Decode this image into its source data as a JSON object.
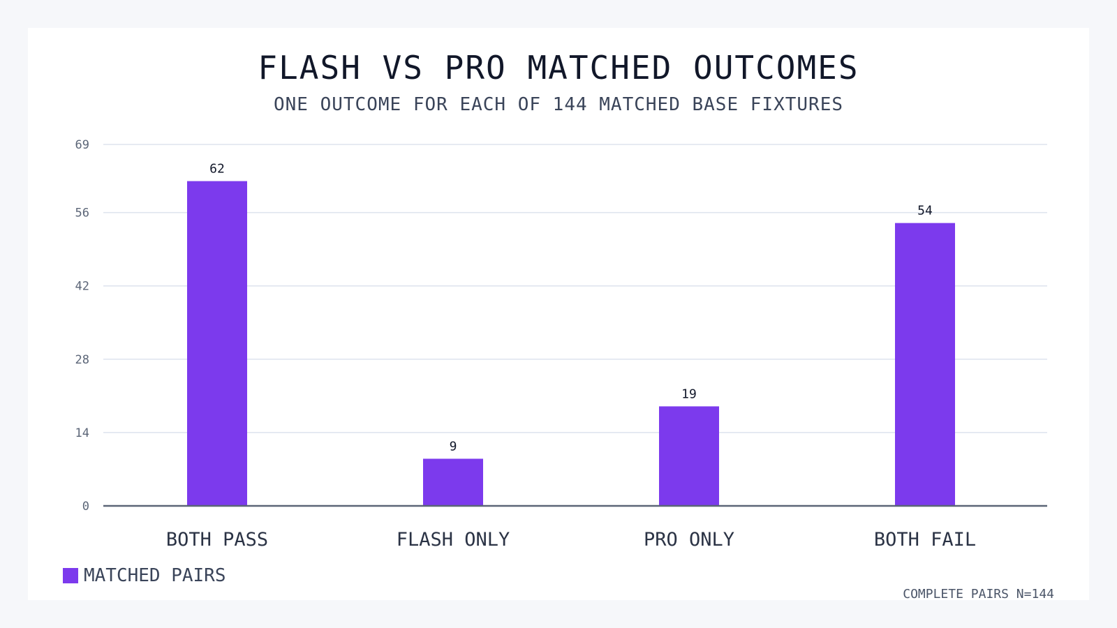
{
  "chart_data": {
    "type": "bar",
    "title": "FLASH VS PRO MATCHED OUTCOMES",
    "subtitle": "ONE OUTCOME FOR EACH OF 144 MATCHED BASE FIXTURES",
    "categories": [
      "BOTH PASS",
      "FLASH ONLY",
      "PRO ONLY",
      "BOTH FAIL"
    ],
    "series": [
      {
        "name": "MATCHED PAIRS",
        "values": [
          62,
          9,
          19,
          54
        ],
        "color": "#7c3aed"
      }
    ],
    "y_ticks": [
      0,
      14,
      28,
      42,
      56,
      69
    ],
    "ylim": [
      0,
      69
    ],
    "grid": true,
    "legend_position": "bottom-left",
    "footnote": "COMPLETE PAIRS N=144"
  },
  "colors": {
    "bar": "#7c3aed",
    "grid": "#dde3ee",
    "axis": "#5b6577",
    "text": "#111729",
    "muted": "#3a4459"
  }
}
